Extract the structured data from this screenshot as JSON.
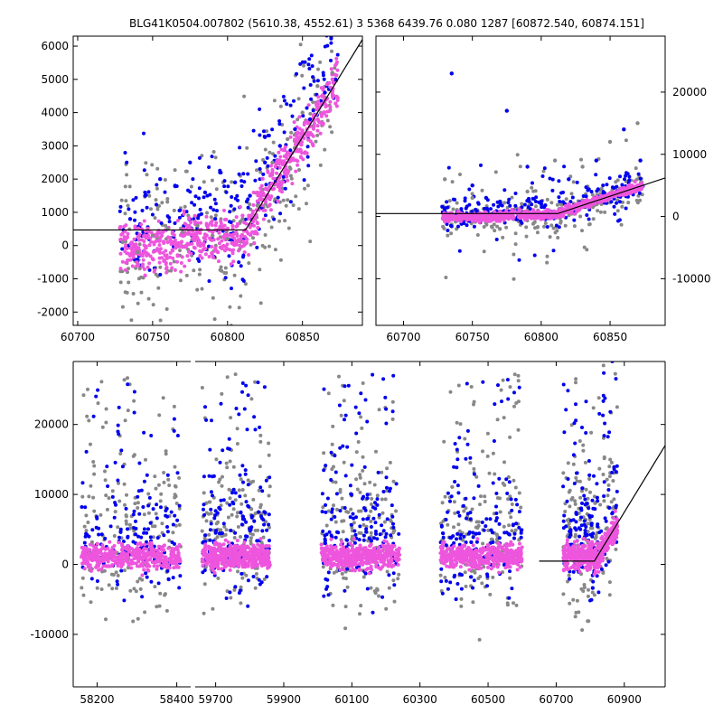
{
  "title": "BLG41K0504.007802 (5610.38, 4552.61)  3 5368 6439.76 0.080 1287 [60872.540, 60874.151]",
  "colors": {
    "grey": "#888888",
    "blue": "#0000ee",
    "pink": "#ee55dd",
    "model": "#000000"
  },
  "chart_data": [
    {
      "panel": "top-left",
      "type": "scatter",
      "xlim": [
        60697,
        60890
      ],
      "ylim": [
        -2400,
        6300
      ],
      "xticks": [
        60700,
        60750,
        60800,
        60850
      ],
      "yticks": [
        -2000,
        -1000,
        0,
        1000,
        2000,
        3000,
        4000,
        5000,
        6000
      ],
      "ytick_side": "left",
      "model_line": {
        "x": [
          60697,
          60812,
          60890
        ],
        "y": [
          470,
          470,
          6200
        ]
      },
      "series": [
        {
          "color": "grey",
          "x": [
            60730,
            60740,
            60750,
            60760,
            60770,
            60780,
            60790,
            60800,
            60810,
            60820,
            60830,
            60840,
            60850,
            60860,
            60870
          ],
          "y": [
            100,
            -200,
            300,
            500,
            400,
            600,
            300,
            200,
            800,
            1200,
            2500,
            3200,
            4000,
            4800,
            5200
          ]
        },
        {
          "color": "blue",
          "x": [
            60735,
            60745,
            60755,
            60765,
            60775,
            60785,
            60795,
            60805,
            60815,
            60825,
            60835,
            60845,
            60855,
            60865,
            60872
          ],
          "y": [
            800,
            1500,
            2000,
            1800,
            2500,
            1600,
            2200,
            1900,
            1500,
            2500,
            3000,
            3500,
            3800,
            4600,
            5000
          ]
        },
        {
          "color": "pink",
          "x": [
            60735,
            60740,
            60745,
            60750,
            60760,
            60770,
            60780,
            60790,
            60800,
            60810,
            60820,
            60830,
            60840,
            60850,
            60860,
            60870
          ],
          "y": [
            -300,
            -600,
            -900,
            -400,
            100,
            300,
            200,
            400,
            300,
            900,
            1600,
            2200,
            2800,
            3400,
            4200,
            5000
          ]
        }
      ]
    },
    {
      "panel": "top-right",
      "type": "scatter",
      "xlim": [
        60680,
        60890
      ],
      "ylim": [
        -17500,
        29000
      ],
      "xticks": [
        60700,
        60750,
        60800,
        60850
      ],
      "yticks": [
        -10000,
        0,
        10000,
        20000
      ],
      "ytick_side": "right",
      "model_line": {
        "x": [
          60680,
          60812,
          60890
        ],
        "y": [
          470,
          470,
          6200
        ]
      },
      "series": [
        {
          "color": "grey",
          "x": [
            60730,
            60750,
            60770,
            60790,
            60810,
            60830,
            60850,
            60870
          ],
          "y": [
            6000,
            3000,
            -2000,
            4000,
            9000,
            8000,
            12000,
            15000
          ]
        },
        {
          "color": "blue",
          "x": [
            60735,
            60750,
            60760,
            60775,
            60790,
            60800,
            60820,
            60840,
            60860,
            60872
          ],
          "y": [
            23000,
            5000,
            3000,
            17000,
            8000,
            2000,
            6000,
            9000,
            14000,
            9000
          ]
        },
        {
          "color": "pink",
          "x": [
            60730,
            60745,
            60760,
            60775,
            60790,
            60805,
            60820,
            60835,
            60850,
            60865,
            60872
          ],
          "y": [
            0,
            -300,
            200,
            500,
            300,
            1000,
            2000,
            2500,
            3000,
            4000,
            5000
          ]
        }
      ]
    },
    {
      "panel": "bottom",
      "type": "scatter",
      "ylim": [
        -17500,
        29000
      ],
      "yticks": [
        -10000,
        0,
        10000,
        20000
      ],
      "ytick_side": "left",
      "segments": [
        {
          "xlim": [
            58140,
            58435
          ],
          "xticks": [
            58200,
            58400
          ]
        },
        {
          "xlim": [
            59640,
            61020
          ],
          "xticks": [
            59700,
            59900,
            60100,
            60300,
            60500,
            60700,
            60900
          ]
        }
      ],
      "seasons": [
        [
          58160,
          58410
        ],
        [
          59660,
          59860
        ],
        [
          60010,
          60240
        ],
        [
          60360,
          60600
        ],
        [
          60720,
          60880
        ]
      ],
      "model_line": {
        "x": [
          60650,
          60812,
          61020
        ],
        "y": [
          470,
          470,
          17000
        ]
      }
    }
  ]
}
